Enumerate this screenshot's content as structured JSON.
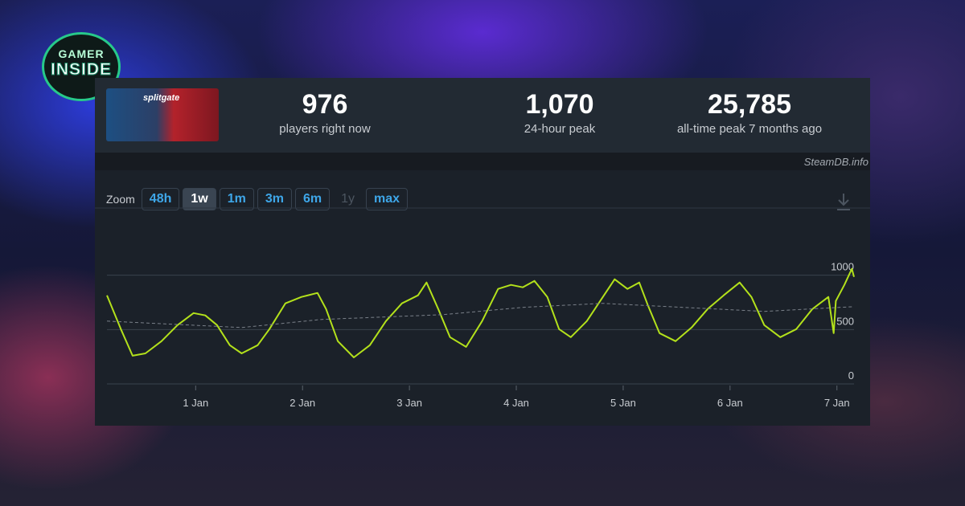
{
  "logo": {
    "line1": "GAMER",
    "line2": "INSIDE"
  },
  "game_image_text": "splitgate",
  "stats": [
    {
      "value": "976",
      "label": "players right now"
    },
    {
      "value": "1,070",
      "label": "24-hour peak"
    },
    {
      "value": "25,785",
      "label": "all-time peak 7 months ago"
    }
  ],
  "source": "SteamDB.info",
  "zoom": {
    "label": "Zoom",
    "buttons": [
      "48h",
      "1w",
      "1m",
      "3m",
      "6m",
      "1y",
      "max"
    ],
    "active": "1w",
    "disabled": "1y"
  },
  "chart_data": {
    "type": "line",
    "xlim": [
      0.17,
      7.16
    ],
    "ylim": [
      0,
      1500
    ],
    "xticks": [
      {
        "value": 1,
        "label": "1 Jan"
      },
      {
        "value": 2,
        "label": "2 Jan"
      },
      {
        "value": 3,
        "label": "3 Jan"
      },
      {
        "value": 4,
        "label": "4 Jan"
      },
      {
        "value": 5,
        "label": "5 Jan"
      },
      {
        "value": 6,
        "label": "6 Jan"
      },
      {
        "value": 7,
        "label": "7 Jan"
      }
    ],
    "yticks": [
      0,
      500,
      1000
    ],
    "grid": true,
    "series": [
      {
        "color": "#b3e11b",
        "dash": false,
        "x": [
          0.17,
          0.3,
          0.41,
          0.53,
          0.68,
          0.83,
          0.98,
          1.09,
          1.2,
          1.32,
          1.43,
          1.58,
          1.69,
          1.84,
          1.99,
          2.14,
          2.22,
          2.33,
          2.48,
          2.63,
          2.78,
          2.93,
          3.08,
          3.16,
          3.27,
          3.38,
          3.53,
          3.68,
          3.83,
          3.95,
          4.06,
          4.17,
          4.29,
          4.4,
          4.51,
          4.66,
          4.81,
          4.92,
          5.04,
          5.15,
          5.23,
          5.34,
          5.49,
          5.64,
          5.79,
          5.94,
          6.09,
          6.2,
          6.32,
          6.47,
          6.62,
          6.77,
          6.92,
          6.97,
          6.99,
          7.07,
          7.14,
          7.16
        ],
        "values": [
          815,
          504,
          259,
          281,
          393,
          541,
          652,
          630,
          541,
          356,
          281,
          356,
          504,
          741,
          800,
          837,
          689,
          393,
          244,
          356,
          578,
          741,
          815,
          933,
          689,
          430,
          341,
          578,
          874,
          911,
          889,
          948,
          800,
          504,
          430,
          578,
          800,
          963,
          874,
          933,
          726,
          467,
          393,
          519,
          689,
          815,
          933,
          800,
          541,
          430,
          504,
          689,
          800,
          467,
          763,
          911,
          1059,
          985
        ]
      },
      {
        "color": "#7a8089",
        "dash": true,
        "x": [
          0.17,
          1.43,
          2.18,
          3.31,
          4.06,
          4.81,
          5.56,
          6.32,
          7.16
        ],
        "values": [
          578,
          519,
          593,
          637,
          704,
          741,
          704,
          667,
          711
        ]
      }
    ]
  }
}
